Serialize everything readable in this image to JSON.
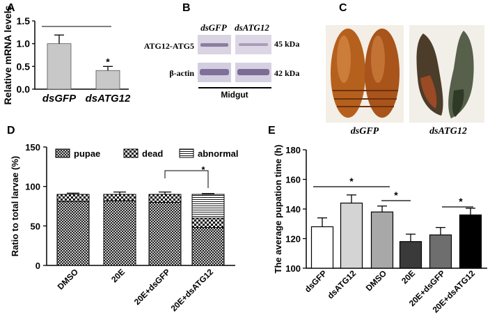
{
  "panels": {
    "A": "A",
    "B": "B",
    "C": "C",
    "D": "D",
    "E": "E"
  },
  "chart_data": [
    {
      "panel": "A",
      "type": "bar",
      "ylabel": "Relative mRNA levels",
      "categories": [
        "dsGFP",
        "dsATG12"
      ],
      "values": [
        1.0,
        0.41
      ],
      "errors": [
        0.19,
        0.09
      ],
      "ylim": [
        0,
        1.5
      ],
      "yticks": [
        "0.0",
        "0.5",
        "1.0",
        "1.5"
      ],
      "significance": "*",
      "bar_fill": "#c8c8c8"
    },
    {
      "panel": "D",
      "type": "bar",
      "stacked": true,
      "ylabel": "Ratio to total larvae (%)",
      "categories": [
        "DMSO",
        "20E",
        "20E+dsGFP",
        "20E+dsATG12"
      ],
      "series": [
        {
          "name": "pupae",
          "values": [
            81,
            82,
            80,
            48
          ],
          "errors": [
            0,
            0,
            0,
            0
          ]
        },
        {
          "name": "dead",
          "values": [
            9,
            8,
            10,
            12
          ],
          "errors": [
            0,
            0,
            0,
            0
          ]
        },
        {
          "name": "abnormal",
          "values": [
            0,
            0,
            0,
            30
          ],
          "errors": [
            0,
            0,
            0,
            0
          ]
        }
      ],
      "total_errors": [
        1.5,
        3,
        3,
        1
      ],
      "ylim": [
        0,
        150
      ],
      "yticks": [
        "0",
        "50",
        "100",
        "150"
      ],
      "significance": "*",
      "legend": "top"
    },
    {
      "panel": "E",
      "type": "bar",
      "ylabel": "The average pupation time (h)",
      "categories": [
        "dsGFP",
        "dsATG12",
        "DMSO",
        "20E",
        "20E+dsGFP",
        "20E+dsATG12"
      ],
      "values": [
        128,
        144,
        138,
        118,
        122.5,
        136
      ],
      "errors": [
        6,
        5.5,
        4,
        5,
        5,
        4.5
      ],
      "colors": [
        "#ffffff",
        "#d4d4d4",
        "#a8a8a8",
        "#3a3a3a",
        "#6e6e6e",
        "#000000"
      ],
      "ylim": [
        100,
        180
      ],
      "yticks": [
        "100",
        "120",
        "140",
        "160",
        "180"
      ],
      "significance": [
        "*",
        "*",
        "*"
      ]
    }
  ],
  "blot": {
    "lanes": [
      "dsGFP",
      "dsATG12"
    ],
    "rows": [
      {
        "label": "ATG12-ATG5",
        "size": "45 kDa"
      },
      {
        "label": "β-actin",
        "size": "42 kDa"
      }
    ],
    "tissue": "Midgut"
  },
  "photos": {
    "left_caption": "dsGFP",
    "right_caption": "dsATG12"
  }
}
